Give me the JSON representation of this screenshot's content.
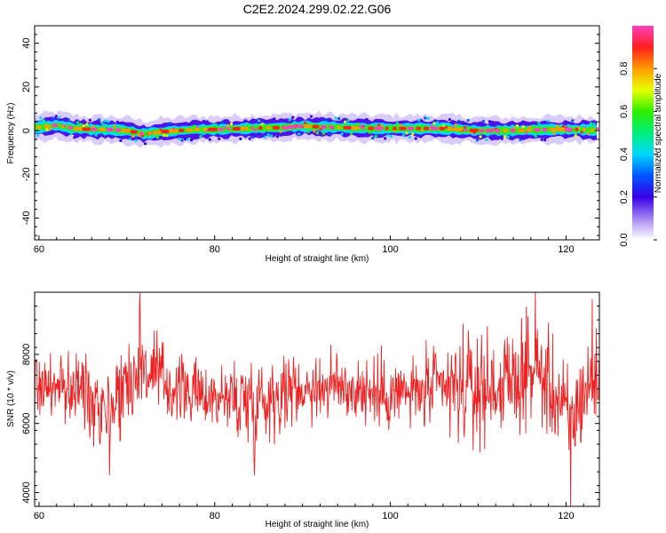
{
  "chart_data": [
    {
      "type": "heatmap",
      "title": "C2E2.2024.299.02.22.G06",
      "xlabel": "Height of straight line (km)",
      "ylabel": "Frequency (Hz)",
      "xlim": [
        59.5,
        123.8
      ],
      "ylim": [
        -50,
        48
      ],
      "xticks": [
        60,
        80,
        100,
        120
      ],
      "yticks": [
        40,
        20,
        0,
        -20,
        -40
      ],
      "band": {
        "center_hz": [
          {
            "x": 60,
            "y": 1.5
          },
          {
            "x": 62,
            "y": 2.5
          },
          {
            "x": 64,
            "y": 1.0
          },
          {
            "x": 66,
            "y": 0.5
          },
          {
            "x": 68,
            "y": 0.5
          },
          {
            "x": 70,
            "y": 0.0
          },
          {
            "x": 72,
            "y": -1.5
          },
          {
            "x": 74,
            "y": -0.5
          },
          {
            "x": 76,
            "y": 0.0
          },
          {
            "x": 78,
            "y": 0.5
          },
          {
            "x": 80,
            "y": 0.5
          },
          {
            "x": 84,
            "y": 1.0
          },
          {
            "x": 88,
            "y": 1.5
          },
          {
            "x": 90,
            "y": 2.0
          },
          {
            "x": 94,
            "y": 1.5
          },
          {
            "x": 98,
            "y": 1.0
          },
          {
            "x": 102,
            "y": 1.0
          },
          {
            "x": 106,
            "y": 1.0
          },
          {
            "x": 110,
            "y": 0.0
          },
          {
            "x": 114,
            "y": 0.0
          },
          {
            "x": 118,
            "y": 0.5
          },
          {
            "x": 122,
            "y": 0.5
          },
          {
            "x": 123.8,
            "y": 0.0
          }
        ],
        "halfwidth_hz": 6
      },
      "colorbar": {
        "label": "Normalized spectral amplitude",
        "range": [
          0,
          1
        ],
        "ticks": [
          "0.0",
          "0.2",
          "0.4",
          "0.6",
          "0.8"
        ]
      }
    },
    {
      "type": "line",
      "xlabel": "Height of straight line (km)",
      "ylabel": "SNR (10 * v/v)",
      "xlim": [
        59.5,
        123.8
      ],
      "ylim": [
        3600,
        9800
      ],
      "xticks": [
        60,
        80,
        100,
        120
      ],
      "yticks": [
        4000,
        6000,
        8000
      ],
      "color": "#ee2222",
      "envelope": [
        {
          "x": 59.5,
          "low": 5400,
          "high": 9000
        },
        {
          "x": 62,
          "low": 5800,
          "high": 8200
        },
        {
          "x": 65,
          "low": 5200,
          "high": 8800
        },
        {
          "x": 68,
          "low": 4500,
          "high": 8600
        },
        {
          "x": 71.5,
          "low": 5600,
          "high": 9800
        },
        {
          "x": 75,
          "low": 5500,
          "high": 8600
        },
        {
          "x": 79,
          "low": 5600,
          "high": 8000
        },
        {
          "x": 84.5,
          "low": 4500,
          "high": 8800
        },
        {
          "x": 89,
          "low": 5600,
          "high": 8400
        },
        {
          "x": 94,
          "low": 5600,
          "high": 8600
        },
        {
          "x": 99,
          "low": 5300,
          "high": 8400
        },
        {
          "x": 103,
          "low": 5400,
          "high": 8400
        },
        {
          "x": 107,
          "low": 4800,
          "high": 9200
        },
        {
          "x": 110,
          "low": 4600,
          "high": 9400
        },
        {
          "x": 113,
          "low": 5200,
          "high": 9000
        },
        {
          "x": 116.5,
          "low": 5400,
          "high": 9800
        },
        {
          "x": 119.5,
          "low": 4300,
          "high": 8800
        },
        {
          "x": 120.5,
          "low": 3600,
          "high": 8200
        },
        {
          "x": 122,
          "low": 4800,
          "high": 9000
        },
        {
          "x": 123.8,
          "low": 5200,
          "high": 9400
        }
      ],
      "spikes": [
        {
          "x": 71.5,
          "y": 9800
        },
        {
          "x": 116.5,
          "y": 9800
        },
        {
          "x": 123,
          "y": 9600
        },
        {
          "x": 120.5,
          "y": 3600
        },
        {
          "x": 84.5,
          "y": 4500
        },
        {
          "x": 68,
          "y": 4500
        }
      ]
    }
  ]
}
